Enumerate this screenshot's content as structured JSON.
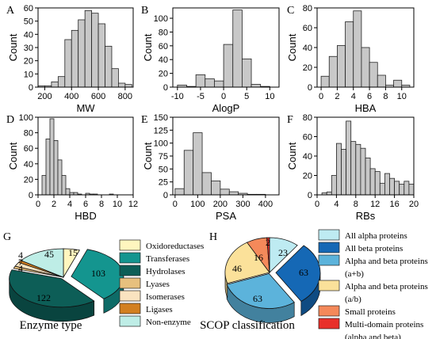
{
  "chart_data": [
    {
      "type": "bar",
      "panel_letter": "A",
      "xlabel": "MW",
      "ylabel": "Count",
      "xlim": [
        150,
        860
      ],
      "ylim": [
        0,
        60
      ],
      "xticks": [
        200,
        400,
        600,
        800
      ],
      "yticks": [
        0,
        10,
        20,
        30,
        40,
        50,
        60
      ],
      "bin_edges": [
        150,
        200,
        250,
        300,
        350,
        400,
        450,
        500,
        550,
        600,
        650,
        700,
        750,
        800,
        850
      ],
      "values": [
        1,
        1,
        4,
        8,
        36,
        43,
        51,
        58,
        56,
        48,
        31,
        14,
        3,
        2
      ]
    },
    {
      "type": "bar",
      "panel_letter": "B",
      "xlabel": "AlogP",
      "ylabel": "Count",
      "xlim": [
        -11,
        12
      ],
      "ylim": [
        0,
        115
      ],
      "xticks": [
        -10,
        -5,
        0,
        5,
        10
      ],
      "yticks": [
        0,
        20,
        40,
        60,
        80,
        100
      ],
      "bin_edges": [
        -10,
        -8,
        -6,
        -4,
        -2,
        0,
        2,
        4,
        6,
        8,
        10
      ],
      "values": [
        3,
        1,
        18,
        12,
        9,
        62,
        112,
        41,
        4,
        1
      ]
    },
    {
      "type": "bar",
      "panel_letter": "C",
      "xlabel": "HBA",
      "ylabel": "Count",
      "xlim": [
        -0.5,
        11.5
      ],
      "ylim": [
        0,
        80
      ],
      "xticks": [
        0,
        2,
        4,
        6,
        8,
        10
      ],
      "yticks": [
        0,
        20,
        40,
        60,
        80
      ],
      "bin_edges": [
        0,
        1,
        2,
        3,
        4,
        5,
        6,
        7,
        8,
        9,
        10,
        11
      ],
      "values": [
        11,
        31,
        42,
        66,
        77,
        40,
        25,
        12,
        2,
        7,
        2
      ]
    },
    {
      "type": "bar",
      "panel_letter": "D",
      "xlabel": "HBD",
      "ylabel": "Count",
      "xlim": [
        0,
        12
      ],
      "ylim": [
        0,
        100
      ],
      "xticks": [
        0,
        2,
        4,
        6,
        8,
        10,
        12
      ],
      "yticks": [
        0,
        20,
        40,
        60,
        80,
        100
      ],
      "bin_edges": [
        0,
        0.5,
        1,
        1.5,
        2,
        2.5,
        3,
        3.5,
        4,
        4.5,
        5,
        5.5,
        6,
        6.5,
        7,
        7.5,
        8,
        8.5,
        9,
        9.5,
        10,
        10.5,
        11,
        11.5,
        12
      ],
      "values": [
        0,
        25,
        72,
        98,
        70,
        45,
        25,
        8,
        3,
        3,
        1,
        0,
        2,
        1,
        1,
        0,
        0,
        0,
        1,
        0,
        0,
        0,
        0,
        0
      ]
    },
    {
      "type": "bar",
      "panel_letter": "E",
      "xlabel": "PSA",
      "ylabel": "Count",
      "xlim": [
        -10,
        460
      ],
      "ylim": [
        0,
        150
      ],
      "xticks": [
        0,
        100,
        200,
        300,
        400
      ],
      "yticks": [
        0,
        25,
        50,
        75,
        100,
        125,
        150
      ],
      "bin_edges": [
        0,
        40,
        80,
        120,
        160,
        200,
        240,
        280,
        320,
        360,
        400
      ],
      "values": [
        12,
        86,
        120,
        43,
        27,
        11,
        6,
        3,
        1,
        1
      ]
    },
    {
      "type": "bar",
      "panel_letter": "F",
      "xlabel": "RBs",
      "ylabel": "Count",
      "xlim": [
        0,
        20
      ],
      "ylim": [
        0,
        80
      ],
      "xticks": [
        0,
        4,
        8,
        12,
        16,
        20
      ],
      "yticks": [
        0,
        20,
        40,
        60,
        80
      ],
      "bin_edges": [
        1,
        2,
        3,
        4,
        5,
        6,
        7,
        8,
        9,
        10,
        11,
        12,
        13,
        14,
        15,
        16,
        17,
        18,
        19,
        20
      ],
      "values": [
        2,
        3,
        20,
        53,
        47,
        76,
        55,
        52,
        48,
        38,
        27,
        24,
        12,
        22,
        17,
        14,
        11,
        14,
        11
      ]
    },
    {
      "type": "pie",
      "panel_letter": "G",
      "caption": "Enzyme type",
      "slices": [
        {
          "label": "Oxidoreductases",
          "value": 15,
          "color": "#FFF6BF"
        },
        {
          "label": "Transferases",
          "value": 103,
          "color": "#14958F"
        },
        {
          "label": "Hydrolases",
          "value": 122,
          "color": "#0D5E57"
        },
        {
          "label": "Lyases",
          "value": 4,
          "color": "#E7C07E"
        },
        {
          "label": "Isomerases",
          "value": 7,
          "color": "#FAE3C0"
        },
        {
          "label": "Ligases",
          "value": 4,
          "color": "#D27F20"
        },
        {
          "label": "Non-enzyme",
          "value": 45,
          "color": "#BEEDE6"
        }
      ]
    },
    {
      "type": "pie",
      "panel_letter": "H",
      "caption": "SCOP classification",
      "slices": [
        {
          "label": "All alpha proteins",
          "value": 23,
          "color": "#BEEBF2"
        },
        {
          "label": "All beta proteins",
          "value": 63,
          "color": "#1568B5"
        },
        {
          "label": "Alpha and beta proteins (a+b)",
          "value": 63,
          "color": "#5CB3DB"
        },
        {
          "label": "Alpha and beta proteins (a/b)",
          "value": 46,
          "color": "#FBE19A"
        },
        {
          "label": "Small proteins",
          "value": 16,
          "color": "#F4895A"
        },
        {
          "label": "Multi-domain proteins (alpha and beta)",
          "value": 2,
          "color": "#E8302A"
        }
      ]
    }
  ]
}
